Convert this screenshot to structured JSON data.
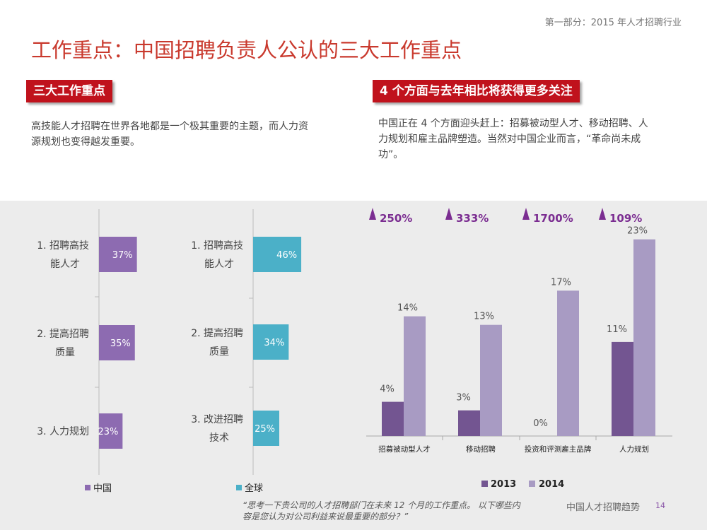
{
  "header": {
    "section": "第一部分：2015 年人才招聘行业",
    "title": "工作重点：中国招聘负责人公认的三大工作重点"
  },
  "left_block": {
    "heading": "三大工作重点",
    "body_line1": "高技能人才招聘在世界各地都是一个极其重要的主题，而人力资",
    "body_line2": "源规划也变得越发重要。"
  },
  "right_block": {
    "heading": "4 个方面与去年相比将获得更多关注",
    "body_line1": "中国正在 4 个方面迎头赶上：招募被动型人才、移动招聘、人",
    "body_line2": "力规划和雇主品牌塑造。当然对中国企业而言，“革命尚未成",
    "body_line3": "功”。"
  },
  "colors": {
    "china": "#8d6bb1",
    "global": "#4bb0c8",
    "y2013": "#735591",
    "y2014": "#a89bc3",
    "triangle": "#7b2d91",
    "red": "#c0121c"
  },
  "chart_data": [
    {
      "type": "bar",
      "orientation": "horizontal",
      "title": "",
      "categories": [
        [
          "1. 招聘高技",
          "能人才"
        ],
        [
          "2. 提高招聘",
          "质量"
        ],
        [
          "3. 人力规划"
        ]
      ],
      "values": [
        37,
        35,
        23
      ],
      "value_labels": [
        "37%",
        "35%",
        "23%"
      ],
      "legend": "中国",
      "xlim": [
        0,
        100
      ]
    },
    {
      "type": "bar",
      "orientation": "horizontal",
      "title": "",
      "categories": [
        [
          "1. 招聘高技",
          "能人才"
        ],
        [
          "2. 提高招聘",
          "质量"
        ],
        [
          "3. 改进招聘",
          "技术"
        ]
      ],
      "values": [
        46,
        34,
        25
      ],
      "value_labels": [
        "46%",
        "34%",
        "25%"
      ],
      "legend": "全球",
      "xlim": [
        0,
        100
      ]
    },
    {
      "type": "bar",
      "orientation": "vertical",
      "categories": [
        "招募被动型人才",
        "移动招聘",
        "投资和评测雇主品牌",
        "人力规划"
      ],
      "series": [
        {
          "name": "2013",
          "values": [
            4,
            3,
            0,
            11
          ],
          "labels": [
            "4%",
            "3%",
            "0%",
            "11%"
          ]
        },
        {
          "name": "2014",
          "values": [
            14,
            13,
            17,
            23
          ],
          "labels": [
            "14%",
            "13%",
            "17%",
            "23%"
          ]
        }
      ],
      "growth": [
        "250%",
        "333%",
        "1700%",
        "109%"
      ],
      "ylim": [
        0,
        25
      ]
    }
  ],
  "footer": {
    "quote_line1": "“思考一下贵公司的人才招聘部门在未来 12 个月的工作重点。 以下哪些内",
    "quote_line2": "容是您认为对公司利益来说最重要的部分？”",
    "brand": "中国人才招聘趋势",
    "page": "14"
  }
}
